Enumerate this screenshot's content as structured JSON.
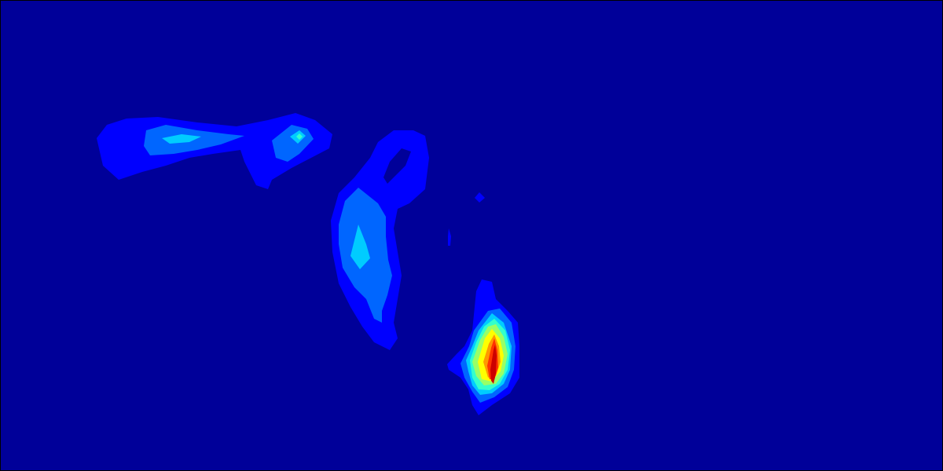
{
  "chart_data": {
    "type": "heatmap",
    "title": "",
    "xlabel": "",
    "ylabel": "",
    "grid": false,
    "legend": "none",
    "colormap": [
      "#000099",
      "#0000FF",
      "#0066FF",
      "#00CCFF",
      "#33FFCC",
      "#99FF66",
      "#FFFF00",
      "#FF9900",
      "#FF3300",
      "#CC0000"
    ],
    "background_color": "#000099",
    "border_color": "#000000",
    "regions": [
      {
        "name": "upper-left-plume",
        "levels": [
          {
            "level": 1,
            "color": "#0000FF",
            "points": [
              [
                122,
                175
              ],
              [
                135,
                158
              ],
              [
                160,
                150
              ],
              [
                200,
                148
              ],
              [
                250,
                155
              ],
              [
                300,
                160
              ],
              [
                340,
                152
              ],
              [
                375,
                143
              ],
              [
                400,
                152
              ],
              [
                422,
                170
              ],
              [
                418,
                188
              ],
              [
                395,
                200
              ],
              [
                370,
                213
              ],
              [
                345,
                228
              ],
              [
                340,
                240
              ],
              [
                325,
                235
              ],
              [
                310,
                205
              ],
              [
                305,
                190
              ],
              [
                270,
                195
              ],
              [
                240,
                200
              ],
              [
                210,
                210
              ],
              [
                180,
                218
              ],
              [
                150,
                228
              ],
              [
                130,
                210
              ]
            ]
          },
          {
            "level": 2,
            "color": "#0066FF",
            "points": [
              [
                182,
                185
              ],
              [
                185,
                165
              ],
              [
                210,
                158
              ],
              [
                250,
                165
              ],
              [
                290,
                170
              ],
              [
                310,
                172
              ],
              [
                280,
                183
              ],
              [
                250,
                190
              ],
              [
                220,
                195
              ],
              [
                190,
                197
              ]
            ]
          },
          {
            "level": 2,
            "color": "#0066FF",
            "points": [
              [
                345,
                178
              ],
              [
                370,
                158
              ],
              [
                390,
                163
              ],
              [
                398,
                176
              ],
              [
                380,
                195
              ],
              [
                365,
                205
              ],
              [
                350,
                200
              ]
            ]
          },
          {
            "level": 3,
            "color": "#00CCFF",
            "points": [
              [
                205,
                175
              ],
              [
                230,
                170
              ],
              [
                255,
                173
              ],
              [
                240,
                180
              ],
              [
                215,
                182
              ]
            ]
          },
          {
            "level": 3,
            "color": "#00CCFF",
            "points": [
              [
                368,
                173
              ],
              [
                380,
                165
              ],
              [
                388,
                172
              ],
              [
                378,
                182
              ]
            ]
          },
          {
            "level": 4,
            "color": "#33FFCC",
            "points": [
              [
                376,
                173
              ],
              [
                380,
                169
              ],
              [
                384,
                173
              ],
              [
                380,
                177
              ]
            ]
          }
        ]
      },
      {
        "name": "middle-arc-plume",
        "levels": [
          {
            "level": 1,
            "color": "#0000FF",
            "points": [
              [
                420,
                280
              ],
              [
                430,
                245
              ],
              [
                450,
                225
              ],
              [
                470,
                200
              ],
              [
                480,
                180
              ],
              [
                500,
                165
              ],
              [
                525,
                165
              ],
              [
                540,
                172
              ],
              [
                545,
                200
              ],
              [
                540,
                240
              ],
              [
                520,
                258
              ],
              [
                505,
                265
              ],
              [
                500,
                290
              ],
              [
                505,
                320
              ],
              [
                510,
                350
              ],
              [
                505,
                380
              ],
              [
                500,
                410
              ],
              [
                505,
                430
              ],
              [
                495,
                445
              ],
              [
                475,
                435
              ],
              [
                460,
                415
              ],
              [
                445,
                390
              ],
              [
                430,
                360
              ],
              [
                422,
                320
              ]
            ]
          },
          {
            "level": 2,
            "color": "#0066FF",
            "points": [
              [
                430,
                285
              ],
              [
                438,
                255
              ],
              [
                455,
                238
              ],
              [
                480,
                258
              ],
              [
                490,
                275
              ],
              [
                490,
                300
              ],
              [
                493,
                330
              ],
              [
                498,
                350
              ],
              [
                492,
                375
              ],
              [
                485,
                395
              ],
              [
                485,
                410
              ],
              [
                475,
                405
              ],
              [
                465,
                380
              ],
              [
                450,
                365
              ],
              [
                435,
                340
              ],
              [
                430,
                310
              ]
            ]
          },
          {
            "level": 3,
            "color": "#00CCFF",
            "points": [
              [
                445,
                325
              ],
              [
                455,
                285
              ],
              [
                465,
                310
              ],
              [
                470,
                328
              ],
              [
                457,
                342
              ]
            ]
          }
        ],
        "holes": [
          {
            "color": "#000099",
            "points": [
              [
                487,
                225
              ],
              [
                495,
                205
              ],
              [
                510,
                188
              ],
              [
                522,
                192
              ],
              [
                515,
                210
              ],
              [
                500,
                225
              ],
              [
                492,
                233
              ]
            ]
          }
        ]
      },
      {
        "name": "small-specks",
        "levels": [
          {
            "level": 1,
            "color": "#0000FF",
            "points": [
              [
                603,
                251
              ],
              [
                609,
                244
              ],
              [
                616,
                251
              ],
              [
                609,
                257
              ]
            ]
          },
          {
            "level": 1,
            "color": "#0000FF",
            "points": [
              [
                569,
                300
              ],
              [
                570,
                290
              ],
              [
                573,
                300
              ],
              [
                572,
                312
              ],
              [
                569,
                312
              ]
            ]
          }
        ]
      },
      {
        "name": "lower-hotspot",
        "levels": [
          {
            "level": 1,
            "color": "#0000FF",
            "points": [
              [
                568,
                463
              ],
              [
                580,
                450
              ],
              [
                590,
                440
              ],
              [
                600,
                420
              ],
              [
                605,
                370
              ],
              [
                612,
                355
              ],
              [
                625,
                358
              ],
              [
                630,
                380
              ],
              [
                645,
                395
              ],
              [
                658,
                410
              ],
              [
                660,
                440
              ],
              [
                660,
                480
              ],
              [
                648,
                500
              ],
              [
                625,
                515
              ],
              [
                608,
                528
              ],
              [
                600,
                515
              ],
              [
                595,
                495
              ],
              [
                585,
                480
              ],
              [
                570,
                470
              ]
            ]
          },
          {
            "level": 2,
            "color": "#0066FF",
            "points": [
              [
                585,
                462
              ],
              [
                596,
                440
              ],
              [
                602,
                420
              ],
              [
                620,
                395
              ],
              [
                635,
                392
              ],
              [
                650,
                410
              ],
              [
                655,
                440
              ],
              [
                653,
                470
              ],
              [
                645,
                492
              ],
              [
                628,
                505
              ],
              [
                610,
                512
              ],
              [
                600,
                498
              ],
              [
                590,
                480
              ]
            ]
          },
          {
            "level": 3,
            "color": "#00CCFF",
            "points": [
              [
                592,
                458
              ],
              [
                600,
                440
              ],
              [
                608,
                420
              ],
              [
                625,
                398
              ],
              [
                640,
                410
              ],
              [
                650,
                440
              ],
              [
                648,
                470
              ],
              [
                640,
                488
              ],
              [
                625,
                500
              ],
              [
                610,
                502
              ],
              [
                600,
                490
              ],
              [
                595,
                472
              ]
            ]
          },
          {
            "level": 4,
            "color": "#33FFCC",
            "points": [
              [
                597,
                458
              ],
              [
                605,
                435
              ],
              [
                615,
                415
              ],
              [
                628,
                405
              ],
              [
                642,
                420
              ],
              [
                648,
                445
              ],
              [
                645,
                470
              ],
              [
                635,
                488
              ],
              [
                622,
                496
              ],
              [
                608,
                495
              ],
              [
                600,
                480
              ]
            ]
          },
          {
            "level": 5,
            "color": "#99FF66",
            "points": [
              [
                600,
                460
              ],
              [
                610,
                432
              ],
              [
                620,
                415
              ],
              [
                630,
                412
              ],
              [
                640,
                428
              ],
              [
                645,
                450
              ],
              [
                640,
                475
              ],
              [
                630,
                488
              ],
              [
                615,
                490
              ],
              [
                605,
                478
              ]
            ]
          },
          {
            "level": 6,
            "color": "#FFFF00",
            "points": [
              [
                607,
                460
              ],
              [
                616,
                430
              ],
              [
                625,
                418
              ],
              [
                635,
                430
              ],
              [
                640,
                452
              ],
              [
                636,
                472
              ],
              [
                625,
                485
              ],
              [
                612,
                482
              ]
            ]
          },
          {
            "level": 7,
            "color": "#FF9900",
            "points": [
              [
                614,
                460
              ],
              [
                621,
                437
              ],
              [
                628,
                425
              ],
              [
                634,
                440
              ],
              [
                636,
                460
              ],
              [
                630,
                478
              ],
              [
                620,
                480
              ]
            ]
          },
          {
            "level": 8,
            "color": "#FF3300",
            "points": [
              [
                619,
                465
              ],
              [
                624,
                442
              ],
              [
                628,
                430
              ],
              [
                632,
                445
              ],
              [
                633,
                467
              ],
              [
                628,
                483
              ],
              [
                622,
                482
              ]
            ]
          },
          {
            "level": 9,
            "color": "#CC0000",
            "points": [
              [
                623,
                470
              ],
              [
                627,
                445
              ],
              [
                629,
                438
              ],
              [
                631,
                452
              ],
              [
                630,
                475
              ],
              [
                627,
                488
              ],
              [
                624,
                484
              ]
            ]
          }
        ]
      }
    ]
  }
}
